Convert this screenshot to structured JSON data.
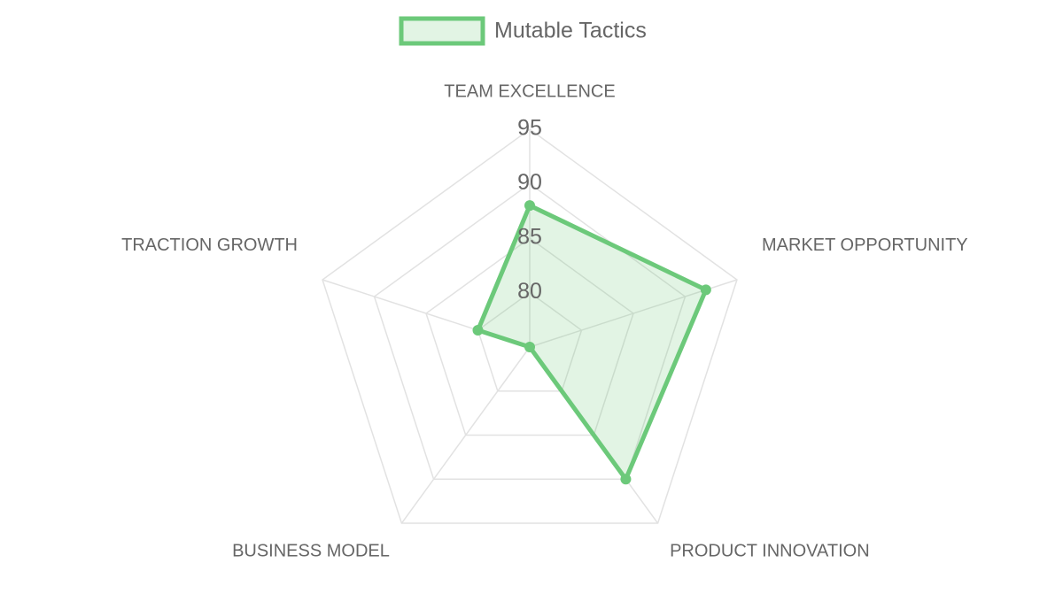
{
  "chart_data": {
    "type": "radar",
    "categories": [
      "TEAM EXCELLENCE",
      "MARKET OPPORTUNITY",
      "PRODUCT INNOVATION",
      "BUSINESS MODEL",
      "TRACTION GROWTH"
    ],
    "series": [
      {
        "name": "Mutable Tactics",
        "color": "#6cc97a",
        "values": [
          88,
          92,
          90,
          75,
          80
        ]
      }
    ],
    "rlim": [
      75,
      95
    ],
    "rticks": [
      80,
      85,
      90,
      95
    ],
    "grid": true,
    "legend": "top"
  }
}
